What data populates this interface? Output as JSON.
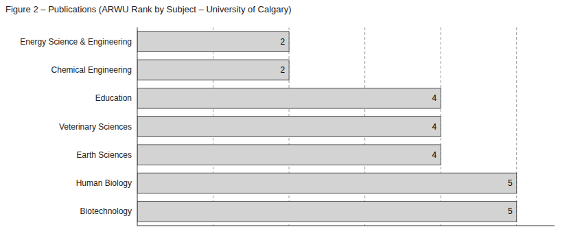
{
  "chart_data": {
    "type": "bar",
    "orientation": "horizontal",
    "title": "Figure 2 – Publications (ARWU Rank by Subject – University of Calgary)",
    "categories": [
      "Biotechnology",
      "Human Biology",
      "Earth Sciences",
      "Veterinary Sciences",
      "Education",
      "Chemical Engineering",
      "Energy Science & Engineering"
    ],
    "values": [
      5,
      5,
      4,
      4,
      4,
      2,
      2
    ],
    "color": "#d3d3d3",
    "xlim": [
      0,
      5.5
    ],
    "xticks": [
      1,
      2,
      3,
      4,
      5
    ],
    "grid": true,
    "data_labels": true,
    "tick_labels": "y"
  }
}
